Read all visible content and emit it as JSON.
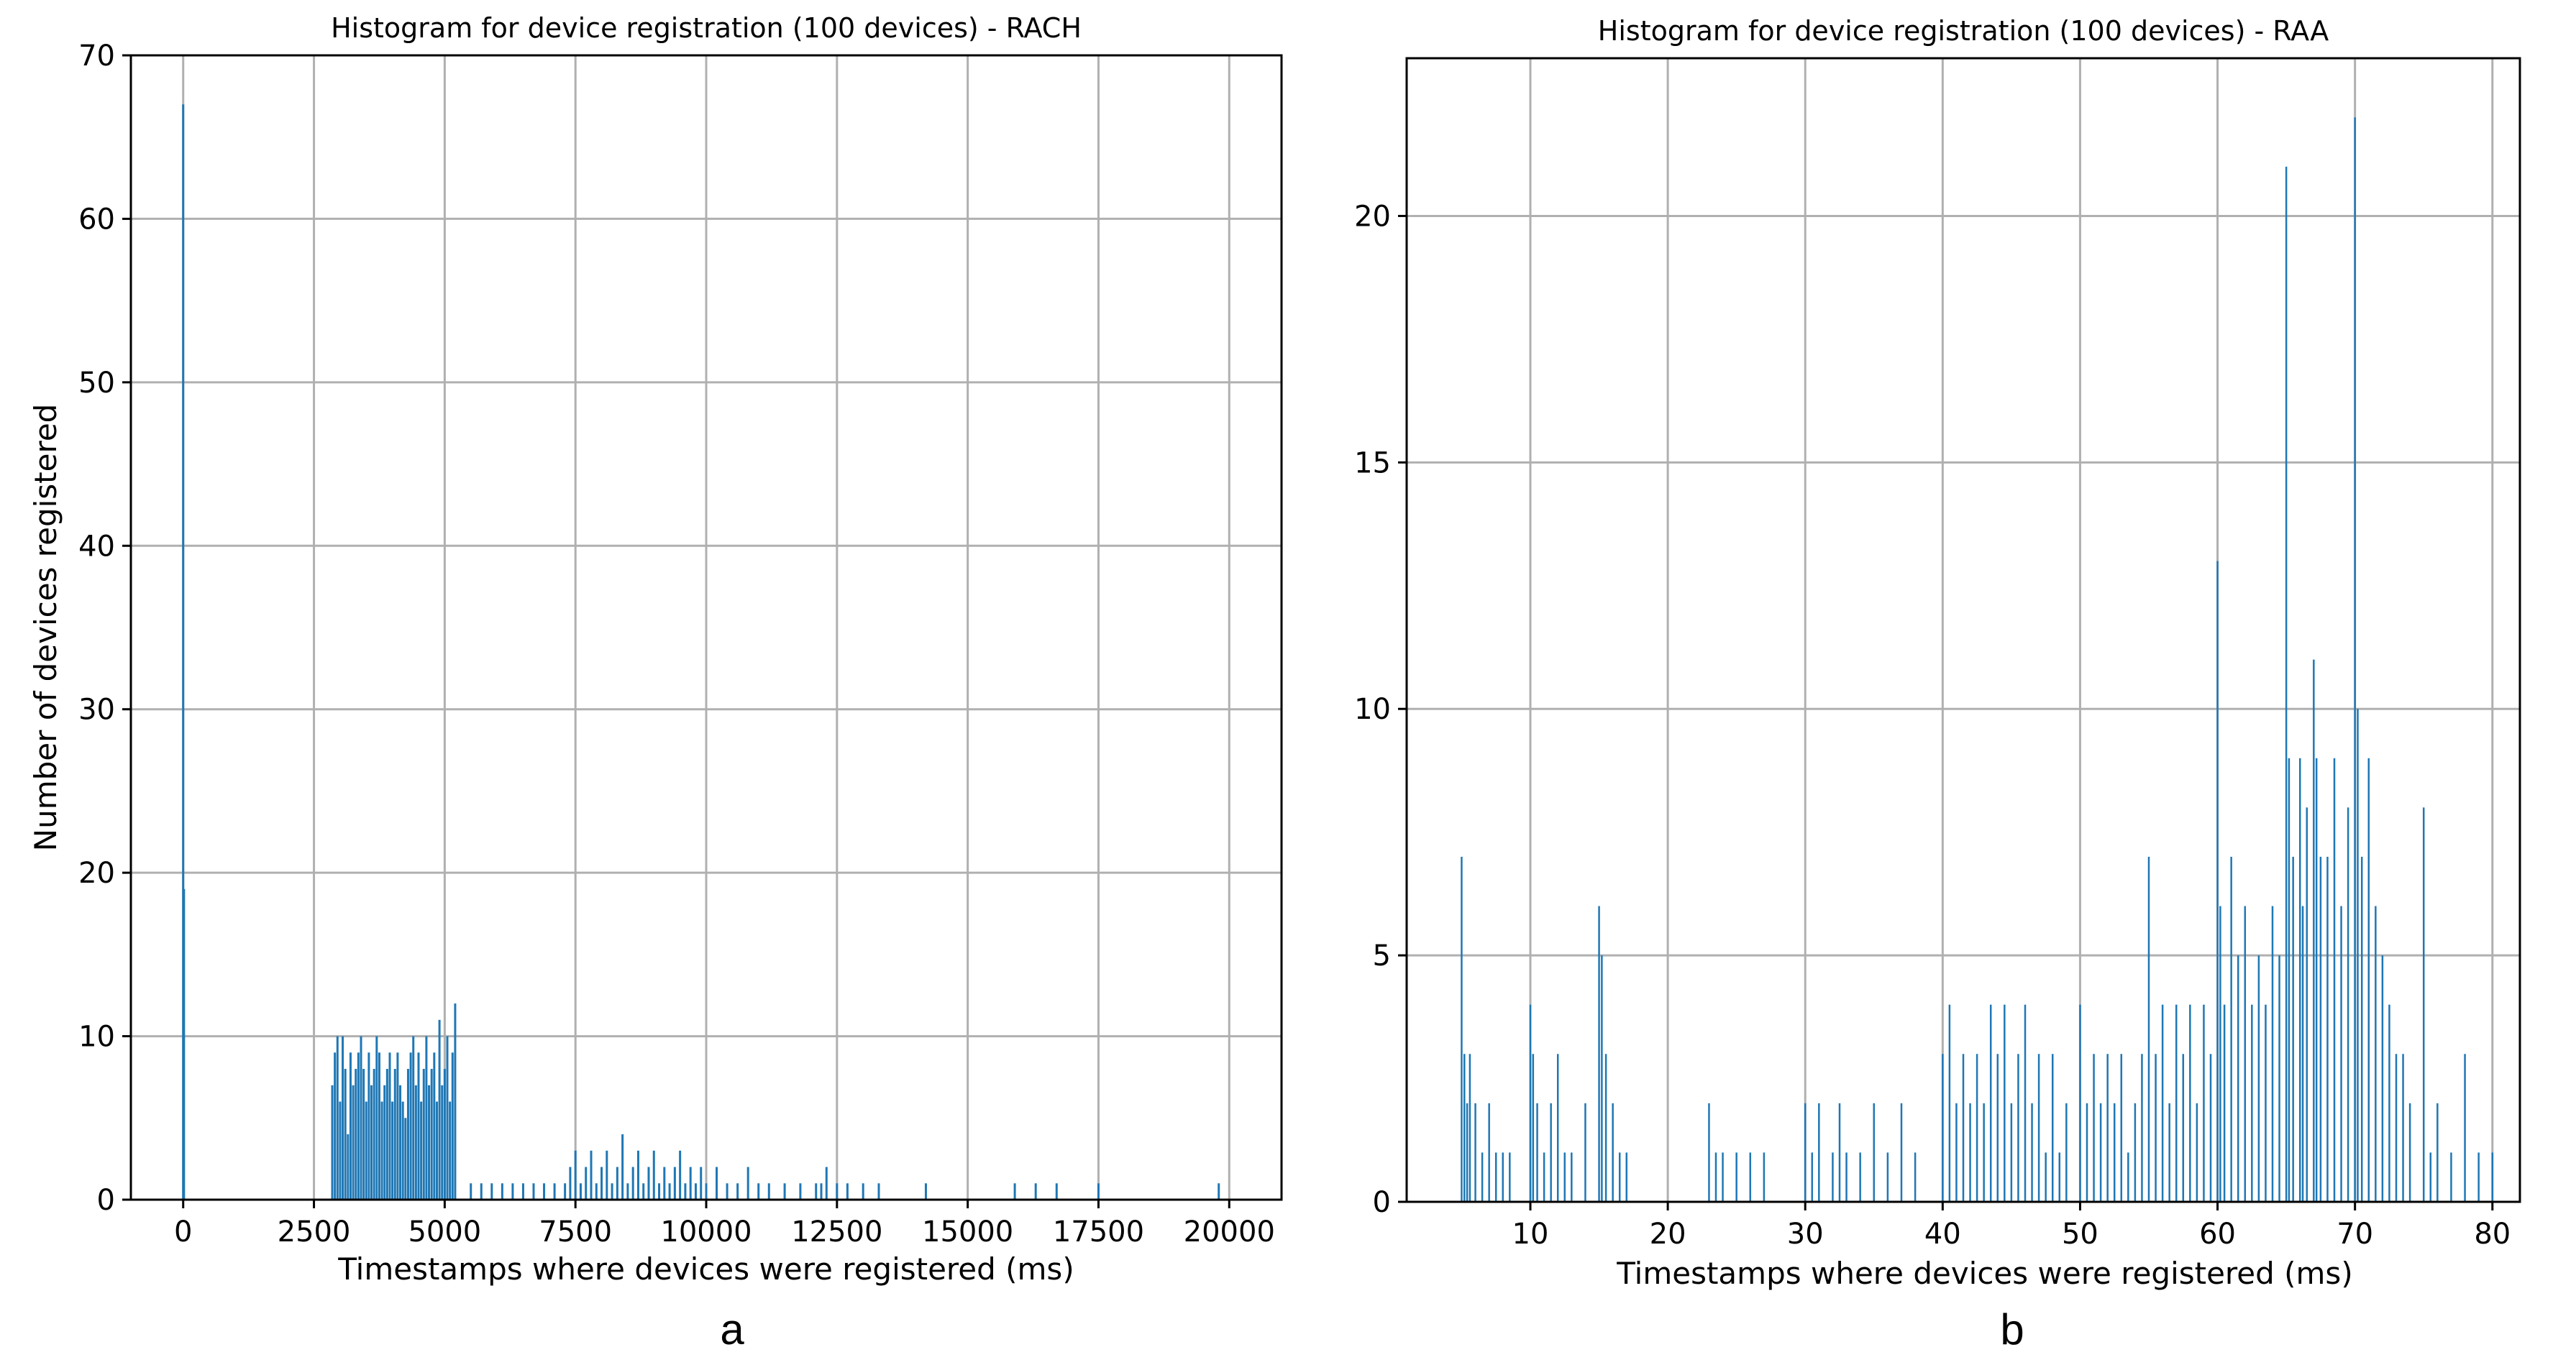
{
  "chart_data": [
    {
      "type": "bar",
      "panel_label": "a",
      "title": "Histogram for device registration (100 devices) - RACH",
      "xlabel": "Timestamps where devices were registered (ms)",
      "ylabel": "Number of devices registered",
      "xlim": [
        -1000,
        21000
      ],
      "ylim": [
        0,
        70
      ],
      "xticks": [
        0,
        2500,
        5000,
        7500,
        10000,
        12500,
        15000,
        17500,
        20000
      ],
      "yticks": [
        0,
        10,
        20,
        30,
        40,
        50,
        60,
        70
      ],
      "grid": true,
      "color": "#1f77b4",
      "series": [
        {
          "x": [
            0,
            15,
            2850,
            2900,
            2950,
            3000,
            3050,
            3100,
            3150,
            3200,
            3250,
            3300,
            3350,
            3400,
            3450,
            3500,
            3550,
            3600,
            3650,
            3700,
            3750,
            3800,
            3850,
            3900,
            3950,
            4000,
            4050,
            4100,
            4150,
            4200,
            4250,
            4300,
            4350,
            4400,
            4450,
            4500,
            4550,
            4600,
            4650,
            4700,
            4750,
            4800,
            4850,
            4900,
            4950,
            5000,
            5050,
            5100,
            5150,
            5200,
            5500,
            5700,
            5900,
            6100,
            6300,
            6500,
            6700,
            6900,
            7100,
            7300,
            7400,
            7500,
            7600,
            7700,
            7800,
            7900,
            8000,
            8100,
            8200,
            8300,
            8400,
            8500,
            8600,
            8700,
            8800,
            8900,
            9000,
            9100,
            9200,
            9300,
            9400,
            9500,
            9600,
            9700,
            9800,
            9900,
            10000,
            10200,
            10400,
            10600,
            10800,
            11000,
            11200,
            11500,
            11800,
            12100,
            12200,
            12300,
            12500,
            12700,
            13000,
            13300,
            14200,
            15900,
            16300,
            16700,
            17500,
            19800
          ],
          "values": [
            67,
            19,
            7,
            9,
            10,
            6,
            10,
            8,
            4,
            9,
            7,
            8,
            9,
            10,
            8,
            6,
            9,
            7,
            8,
            10,
            9,
            6,
            7,
            8,
            9,
            6,
            8,
            9,
            7,
            6,
            5,
            8,
            9,
            10,
            7,
            9,
            6,
            8,
            10,
            7,
            8,
            9,
            6,
            11,
            7,
            8,
            10,
            6,
            9,
            12,
            1,
            1,
            1,
            1,
            1,
            1,
            1,
            1,
            1,
            1,
            2,
            3,
            1,
            2,
            3,
            1,
            2,
            3,
            1,
            2,
            4,
            1,
            2,
            3,
            1,
            2,
            3,
            1,
            2,
            1,
            2,
            3,
            1,
            2,
            1,
            2,
            1,
            2,
            1,
            1,
            2,
            1,
            1,
            1,
            1,
            1,
            1,
            2,
            1,
            1,
            1,
            1,
            1,
            1,
            1,
            1,
            1,
            1
          ]
        }
      ]
    },
    {
      "type": "bar",
      "panel_label": "b",
      "title": "Histogram for device registration (100 devices) - RAA",
      "xlabel": "Timestamps where devices were registered (ms)",
      "ylabel": "",
      "xlim": [
        1,
        82
      ],
      "ylim": [
        0,
        23.2
      ],
      "xticks": [
        10,
        20,
        30,
        40,
        50,
        60,
        70,
        80
      ],
      "yticks": [
        0,
        5,
        10,
        15,
        20
      ],
      "grid": true,
      "color": "#1f77b4",
      "series": [
        {
          "x": [
            5,
            5.2,
            5.4,
            5.6,
            6,
            6.5,
            7,
            7.5,
            8,
            8.5,
            10,
            10.2,
            10.5,
            11,
            11.5,
            12,
            12.5,
            13,
            14,
            15,
            15.2,
            15.5,
            16,
            16.5,
            17,
            23,
            23.5,
            24,
            25,
            26,
            27,
            30,
            30.5,
            31,
            32,
            32.5,
            33,
            34,
            35,
            36,
            37,
            38,
            40,
            40.5,
            41,
            41.5,
            42,
            42.5,
            43,
            43.5,
            44,
            44.5,
            45,
            45.5,
            46,
            46.5,
            47,
            47.5,
            48,
            48.5,
            49,
            50,
            50.5,
            51,
            51.5,
            52,
            52.5,
            53,
            53.5,
            54,
            54.5,
            55,
            55.5,
            56,
            56.5,
            57,
            57.5,
            58,
            58.5,
            59,
            59.5,
            60,
            60.2,
            60.5,
            61,
            61.5,
            62,
            62.5,
            63,
            63.5,
            64,
            64.5,
            65,
            65.2,
            65.5,
            66,
            66.2,
            66.5,
            67,
            67.2,
            67.5,
            68,
            68.5,
            69,
            69.5,
            70,
            70.2,
            70.5,
            71,
            71.5,
            72,
            72.5,
            73,
            73.5,
            74,
            75,
            75.5,
            76,
            77,
            78,
            79,
            80
          ],
          "values": [
            7,
            3,
            2,
            3,
            2,
            1,
            2,
            1,
            1,
            1,
            4,
            3,
            2,
            1,
            2,
            3,
            1,
            1,
            2,
            6,
            5,
            3,
            2,
            1,
            1,
            2,
            1,
            1,
            1,
            1,
            1,
            2,
            1,
            2,
            1,
            2,
            1,
            1,
            2,
            1,
            2,
            1,
            3,
            4,
            2,
            3,
            2,
            3,
            2,
            4,
            3,
            4,
            2,
            3,
            4,
            2,
            3,
            1,
            3,
            1,
            2,
            4,
            2,
            3,
            2,
            3,
            2,
            3,
            1,
            2,
            3,
            7,
            3,
            4,
            2,
            4,
            3,
            4,
            2,
            4,
            3,
            13,
            6,
            4,
            7,
            5,
            6,
            4,
            5,
            4,
            6,
            5,
            21,
            9,
            7,
            9,
            6,
            8,
            11,
            9,
            7,
            7,
            9,
            6,
            8,
            22,
            10,
            7,
            9,
            6,
            5,
            4,
            3,
            3,
            2,
            8,
            1,
            2,
            1,
            3,
            1,
            1
          ]
        }
      ]
    }
  ]
}
